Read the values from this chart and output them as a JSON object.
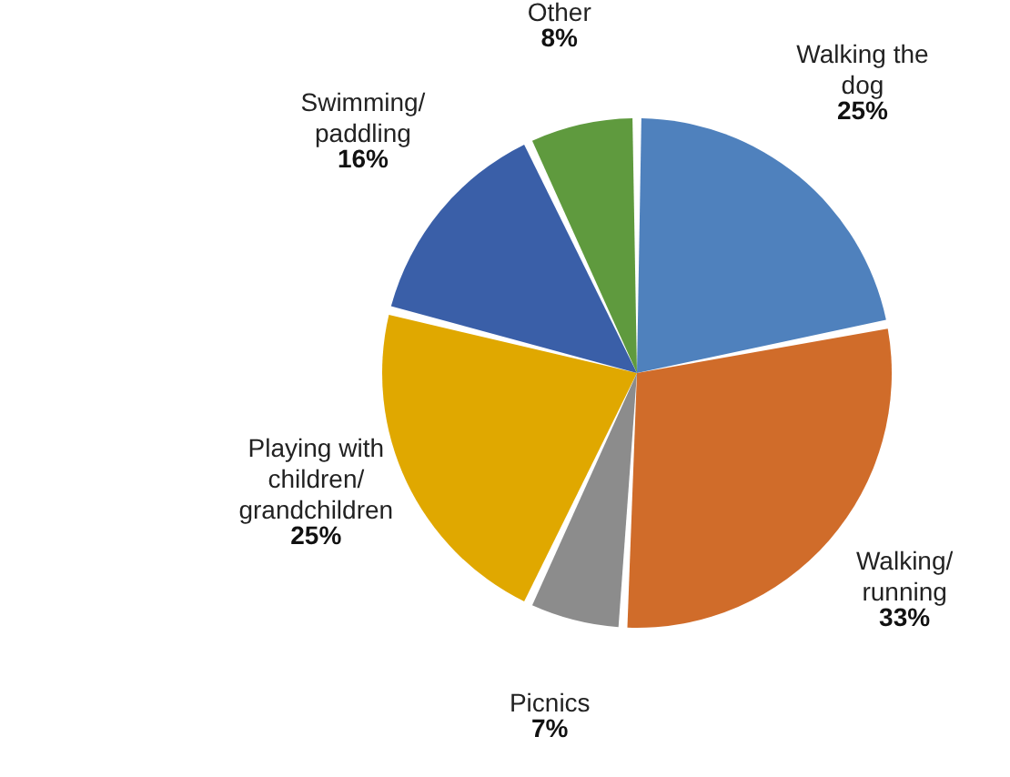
{
  "chart_data": {
    "type": "pie",
    "categories": [
      "Walking the dog",
      "Walking/ running",
      "Picnics",
      "Playing with children/ grandchildren",
      "Swimming/ paddling",
      "Other"
    ],
    "values": [
      25,
      33,
      7,
      25,
      16,
      8
    ],
    "value_labels": [
      "25%",
      "33%",
      "7%",
      "25%",
      "16%",
      "8%"
    ],
    "colors": [
      "#4f81bd",
      "#d06c2a",
      "#8c8c8c",
      "#e0a800",
      "#3a5fa8",
      "#5f9a3e"
    ]
  }
}
